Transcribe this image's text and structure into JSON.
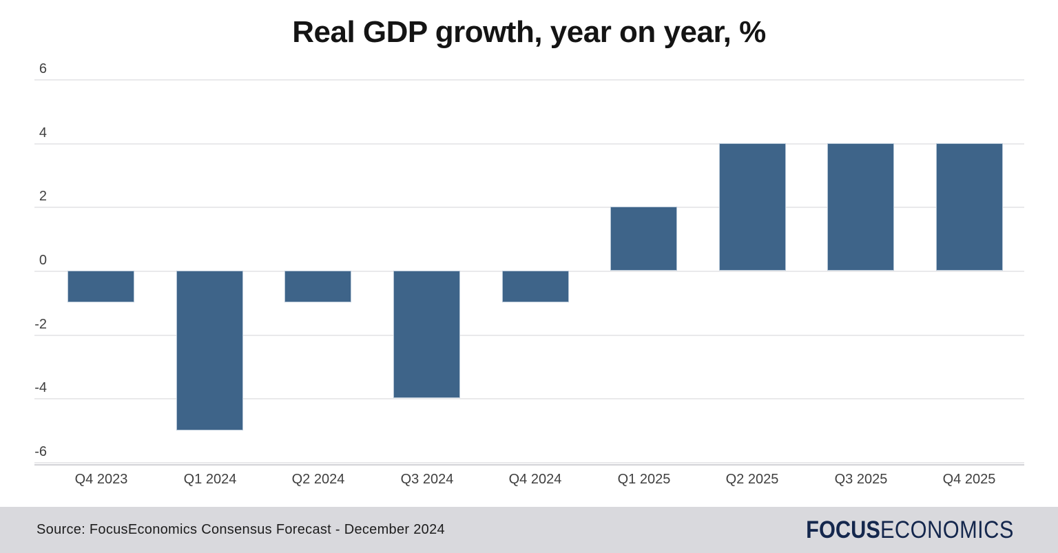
{
  "chart_data": {
    "type": "bar",
    "title": "Real GDP growth, year on year, %",
    "categories": [
      "Q4 2023",
      "Q1 2024",
      "Q2 2024",
      "Q3 2024",
      "Q4 2024",
      "Q1 2025",
      "Q2 2025",
      "Q3 2025",
      "Q4 2025"
    ],
    "values": [
      -1,
      -5,
      -1,
      -4,
      -1,
      2,
      4,
      4,
      4
    ],
    "xlabel": "",
    "ylabel": "",
    "ylim": [
      -6,
      6
    ],
    "yticks": [
      6,
      4,
      2,
      0,
      -2,
      -4,
      -6
    ],
    "grid": true,
    "legend": "none",
    "bar_color": "#3e6489",
    "bar_border_color": "#b7c7d7",
    "gridline_color": "#e9e9eb",
    "axis_line_color": "#d2d2d6",
    "tick_label_color": "#3f3f3f"
  },
  "footer": {
    "source": "Source: FocusEconomics Consensus Forecast - December 2024",
    "logo_bold": "FOCUS",
    "logo_light": "ECONOMICS",
    "background": "#d9d9dd",
    "logo_color": "#14274d"
  }
}
